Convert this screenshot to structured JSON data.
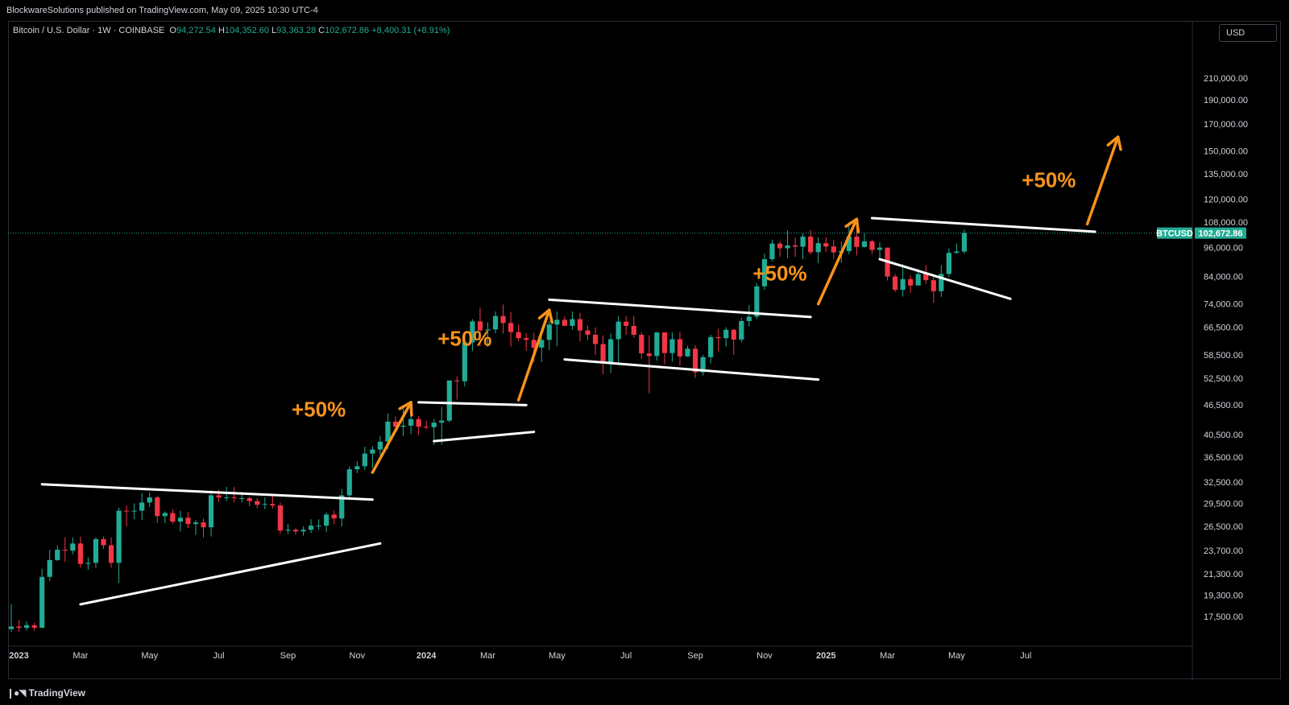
{
  "header": {
    "published": "BlockwareSolutions published on TradingView.com, May 09, 2025 10:30 UTC-4"
  },
  "legend": {
    "symbol": "Bitcoin / U.S. Dollar · 1W · COINBASE",
    "o_label": "O",
    "o_value": "94,272.54",
    "h_label": "H",
    "h_value": "104,352.60",
    "l_label": "L",
    "l_value": "93,363.28",
    "c_label": "C",
    "c_value": "102,672.86",
    "change": "+8,400.31 (+8.91%)"
  },
  "currency_button": "USD",
  "footer": {
    "brand": "TradingView"
  },
  "colors": {
    "up": "#22ab94",
    "down": "#f23645",
    "annotation": "#f7931a",
    "trendline": "#ffffff",
    "background": "#000000",
    "price_line": "#22ab94"
  },
  "chart_data": {
    "type": "candlestick",
    "symbol_badge": "BTCUSD",
    "last_price": 102672.86,
    "last_price_label": "102,672.86",
    "yscale": "log",
    "ylim": [
      16000,
      250000
    ],
    "y_ticks": [
      17500,
      19300,
      21300,
      23700,
      26500,
      29500,
      32500,
      36500,
      40500,
      46500,
      52500,
      58500,
      66500,
      74000,
      84000,
      96000,
      108000,
      120000,
      135000,
      150000,
      170000,
      190000,
      210000
    ],
    "y_tick_labels": [
      "17,500.00",
      "19,300.00",
      "21,300.00",
      "23,700.00",
      "26,500.00",
      "29,500.00",
      "32,500.00",
      "36,500.00",
      "40,500.00",
      "46,500.00",
      "52,500.00",
      "58,500.00",
      "66,500.00",
      "74,000.00",
      "84,000.00",
      "96,000.00",
      "108,000.00",
      "120,000.00",
      "135,000.00",
      "150,000.00",
      "170,000.00",
      "190,000.00",
      "210,000.00"
    ],
    "x_ticks": [
      {
        "label": "2023",
        "week": 1,
        "year": true
      },
      {
        "label": "Mar",
        "week": 9,
        "year": false
      },
      {
        "label": "May",
        "week": 18,
        "year": false
      },
      {
        "label": "Jul",
        "week": 27,
        "year": false
      },
      {
        "label": "Sep",
        "week": 36,
        "year": false
      },
      {
        "label": "Nov",
        "week": 45,
        "year": false
      },
      {
        "label": "2024",
        "week": 54,
        "year": true
      },
      {
        "label": "Mar",
        "week": 62,
        "year": false
      },
      {
        "label": "May",
        "week": 71,
        "year": false
      },
      {
        "label": "Jul",
        "week": 80,
        "year": false
      },
      {
        "label": "Sep",
        "week": 89,
        "year": false
      },
      {
        "label": "Nov",
        "week": 98,
        "year": false
      },
      {
        "label": "2025",
        "week": 106,
        "year": true
      },
      {
        "label": "Mar",
        "week": 114,
        "year": false
      },
      {
        "label": "May",
        "week": 123,
        "year": false
      },
      {
        "label": "Jul",
        "week": 132,
        "year": false
      }
    ],
    "closes": [
      16700,
      16600,
      16800,
      16600,
      21000,
      22700,
      23800,
      23700,
      24500,
      22300,
      22400,
      25000,
      24300,
      22400,
      28500,
      28400,
      28500,
      29600,
      30300,
      27800,
      28200,
      27100,
      27600,
      26800,
      27000,
      26400,
      30600,
      30300,
      30300,
      30200,
      30200,
      29800,
      29300,
      29400,
      29200,
      26000,
      26100,
      25900,
      26100,
      26600,
      26600,
      28000,
      27500,
      30600,
      34500,
      35000,
      37100,
      37800,
      39200,
      43000,
      42000,
      42200,
      43500,
      42000,
      41900,
      42800,
      43200,
      52000,
      51800,
      62000,
      68300,
      65500,
      65800,
      70000,
      67800,
      65000,
      63200,
      62700,
      60500,
      62700,
      67300,
      68800,
      66900,
      69000,
      65500,
      64200,
      61500,
      56500,
      62900,
      68200,
      66900,
      64200,
      58900,
      58200,
      64900,
      59000,
      62900,
      58100,
      60200,
      54000,
      57900,
      63500,
      63200,
      65700,
      62800,
      68400,
      69800,
      80300,
      91000,
      97800,
      95700,
      97000,
      96400,
      101000,
      94000,
      98000,
      96500,
      93900,
      94500,
      101000,
      96300,
      98800,
      95000,
      96000,
      84000,
      79000,
      83000,
      80600,
      85000,
      82600,
      78500,
      85000,
      93700,
      94272,
      102672
    ],
    "opens": [
      16500,
      16700,
      16600,
      16800,
      16600,
      21000,
      22700,
      23800,
      23700,
      24500,
      22300,
      22400,
      25000,
      24300,
      22400,
      28500,
      28400,
      28500,
      29600,
      30300,
      27800,
      28200,
      27100,
      27600,
      26800,
      27000,
      26400,
      30600,
      30300,
      30300,
      30200,
      30200,
      29800,
      29300,
      29400,
      29200,
      26000,
      26100,
      25900,
      26100,
      26600,
      26600,
      28000,
      27500,
      30600,
      34500,
      35000,
      37100,
      37800,
      39200,
      43000,
      42000,
      42200,
      43500,
      42000,
      41900,
      42800,
      43200,
      52000,
      51800,
      62000,
      68300,
      65500,
      65800,
      70000,
      67800,
      65000,
      63200,
      62700,
      60500,
      62700,
      67300,
      68800,
      66900,
      69000,
      65500,
      64200,
      61500,
      56500,
      62900,
      68200,
      66900,
      64200,
      58900,
      58200,
      64900,
      59000,
      62900,
      58100,
      60200,
      54000,
      57900,
      63500,
      63200,
      65700,
      62800,
      68400,
      69800,
      80300,
      91000,
      97800,
      95700,
      97000,
      96400,
      101000,
      94000,
      98000,
      96500,
      93900,
      94500,
      101000,
      96300,
      98800,
      95000,
      96000,
      84000,
      79000,
      83000,
      80600,
      85000,
      82600,
      78500,
      85000,
      93700,
      94272
    ],
    "highs": [
      18500,
      17200,
      17100,
      17000,
      21800,
      23800,
      24300,
      25200,
      25200,
      25300,
      23000,
      25200,
      25300,
      25200,
      28900,
      29200,
      29500,
      30900,
      31000,
      30500,
      28400,
      28700,
      28500,
      28300,
      27300,
      27500,
      31300,
      31400,
      31800,
      31800,
      31100,
      30400,
      30200,
      30300,
      30500,
      29600,
      26800,
      26300,
      26500,
      27400,
      27400,
      28300,
      28500,
      31500,
      35000,
      35800,
      38300,
      38400,
      40200,
      44700,
      44000,
      45800,
      47000,
      44100,
      43200,
      43500,
      46000,
      49000,
      53000,
      64000,
      69000,
      72800,
      68000,
      71500,
      73800,
      71400,
      67300,
      64600,
      64800,
      63400,
      68500,
      71500,
      70000,
      71500,
      71000,
      67000,
      66400,
      64000,
      64600,
      70000,
      69900,
      70000,
      65000,
      64000,
      65000,
      61800,
      64900,
      65000,
      61000,
      61200,
      58500,
      64200,
      66000,
      66500,
      66000,
      69400,
      73600,
      81500,
      93400,
      99500,
      98900,
      104000,
      100500,
      102500,
      104000,
      100700,
      100800,
      99500,
      98800,
      108000,
      106000,
      102500,
      99500,
      98500,
      96000,
      85000,
      89000,
      84500,
      87000,
      88500,
      84500,
      88500,
      95700,
      97800,
      104352
    ],
    "lows": [
      16300,
      16300,
      16400,
      16400,
      16600,
      20600,
      22600,
      22500,
      23300,
      21900,
      21700,
      21900,
      23900,
      21900,
      20400,
      26500,
      27400,
      27300,
      29000,
      26900,
      26900,
      26800,
      25900,
      26300,
      25500,
      25200,
      25300,
      29700,
      29800,
      29600,
      29600,
      29100,
      28800,
      28700,
      28800,
      25600,
      25600,
      25500,
      25400,
      25700,
      26100,
      25800,
      26800,
      26500,
      30300,
      33900,
      34400,
      34700,
      36800,
      37900,
      41300,
      40200,
      40600,
      40400,
      41500,
      38600,
      38700,
      42800,
      47600,
      50600,
      59500,
      60800,
      60700,
      64600,
      64600,
      60800,
      62300,
      59600,
      56500,
      56600,
      59800,
      60900,
      67000,
      65700,
      62300,
      62600,
      58500,
      53500,
      53800,
      56100,
      64300,
      63300,
      57500,
      49000,
      57000,
      56000,
      56700,
      55700,
      58000,
      52600,
      53200,
      56200,
      59500,
      60800,
      58500,
      62000,
      66700,
      69000,
      79000,
      90000,
      92000,
      91400,
      92000,
      91000,
      93000,
      89300,
      94000,
      91200,
      89500,
      93100,
      92600,
      96000,
      93200,
      91500,
      82500,
      78200,
      76600,
      78000,
      81000,
      81200,
      74400,
      76500,
      83800,
      93300,
      93363
    ],
    "trendlines": [
      {
        "from": [
          4,
          32200
        ],
        "to": [
          47,
          30000
        ]
      },
      {
        "from": [
          9,
          18500
        ],
        "to": [
          48,
          24500
        ]
      },
      {
        "from": [
          53,
          47000
        ],
        "to": [
          67,
          46400
        ]
      },
      {
        "from": [
          55,
          39300
        ],
        "to": [
          68,
          41000
        ]
      },
      {
        "from": [
          70,
          75500
        ],
        "to": [
          104,
          69700
        ]
      },
      {
        "from": [
          72,
          57300
        ],
        "to": [
          105,
          52200
        ]
      },
      {
        "from": [
          112,
          110000
        ],
        "to": [
          141,
          103300
        ]
      },
      {
        "from": [
          113,
          91000
        ],
        "to": [
          130,
          75800
        ]
      }
    ],
    "arrows": [
      {
        "from": [
          47,
          34000
        ],
        "to": [
          52,
          47000
        ]
      },
      {
        "from": [
          66,
          47500
        ],
        "to": [
          70,
          72000
        ]
      },
      {
        "from": [
          105,
          74000
        ],
        "to": [
          110,
          109500
        ]
      },
      {
        "from": [
          140,
          107000
        ],
        "to": [
          144,
          160000
        ]
      }
    ],
    "annotations": [
      {
        "text": "+50%",
        "at": [
          40,
          44000
        ]
      },
      {
        "text": "+50%",
        "at": [
          59,
          61000
        ]
      },
      {
        "text": "+50%",
        "at": [
          100,
          82500
        ]
      },
      {
        "text": "+50%",
        "at": [
          135,
          127000
        ]
      }
    ]
  }
}
